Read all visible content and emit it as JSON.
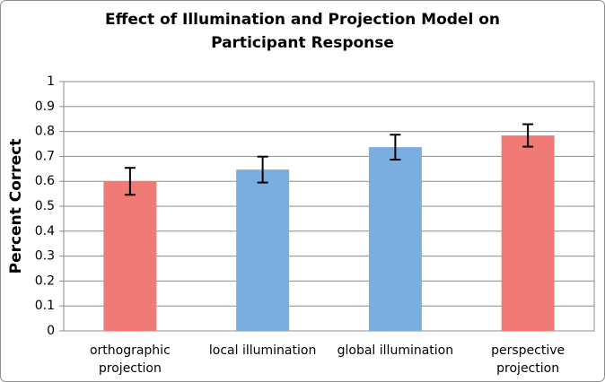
{
  "chart_data": {
    "type": "bar",
    "title": [
      "Effect of Illumination and Projection Model on",
      "Participant Response"
    ],
    "y_label": "Percent Correct",
    "categories": [
      [
        "orthographic",
        "projection"
      ],
      [
        "local illumination"
      ],
      [
        "global illumination"
      ],
      [
        "perspective",
        "projection"
      ]
    ],
    "values": [
      0.6,
      0.647,
      0.737,
      0.784
    ],
    "errors": [
      0.054,
      0.052,
      0.05,
      0.045
    ],
    "colors": [
      "#f07b76",
      "#7aaee0",
      "#7aaee0",
      "#f07b76"
    ],
    "ylim": [
      0,
      1
    ],
    "yticks": [
      0,
      0.1,
      0.2,
      0.3,
      0.4,
      0.5,
      0.6,
      0.7,
      0.8,
      0.9,
      1
    ],
    "grid": true
  }
}
